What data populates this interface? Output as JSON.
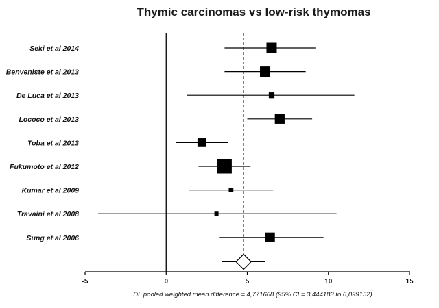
{
  "chart_data": {
    "type": "forest",
    "title": "Thymic carcinomas vs low-risk thymomas",
    "xlabel": "DL pooled weighted mean difference = 4,771668  (95% CI = 3,444183 to 6,099152)",
    "xlim": [
      -5,
      15
    ],
    "xticks": [
      -5,
      0,
      5,
      10,
      15
    ],
    "xtick_labels": [
      "-5",
      "0",
      "5",
      "10",
      "15"
    ],
    "reference_line": 0,
    "pooled_line": 4.771668,
    "studies": [
      {
        "label": "Seki et al 2014",
        "estimate": 6.5,
        "ci": [
          3.6,
          9.2
        ],
        "weight": 1.0
      },
      {
        "label": "Benveniste et al 2013",
        "estimate": 6.1,
        "ci": [
          3.6,
          8.6
        ],
        "weight": 1.0
      },
      {
        "label": "De Luca et al 2013",
        "estimate": 6.5,
        "ci": [
          1.3,
          11.6
        ],
        "weight": 0.55
      },
      {
        "label": "Lococo et al 2013",
        "estimate": 7.0,
        "ci": [
          5.0,
          9.0
        ],
        "weight": 0.95
      },
      {
        "label": "Toba et al 2013",
        "estimate": 2.2,
        "ci": [
          0.6,
          3.8
        ],
        "weight": 0.85
      },
      {
        "label": "Fukumoto et al 2012",
        "estimate": 3.6,
        "ci": [
          2.0,
          5.2
        ],
        "weight": 1.4
      },
      {
        "label": "Kumar et al 2009",
        "estimate": 4.0,
        "ci": [
          1.4,
          6.6
        ],
        "weight": 0.45
      },
      {
        "label": "Travaini et al 2008",
        "estimate": 3.1,
        "ci": [
          -4.2,
          10.5
        ],
        "weight": 0.4
      },
      {
        "label": "Sung et al 2006",
        "estimate": 6.4,
        "ci": [
          3.3,
          9.7
        ],
        "weight": 0.95
      }
    ],
    "pooled": {
      "estimate": 4.771668,
      "ci": [
        3.444183,
        6.099152
      ]
    }
  }
}
